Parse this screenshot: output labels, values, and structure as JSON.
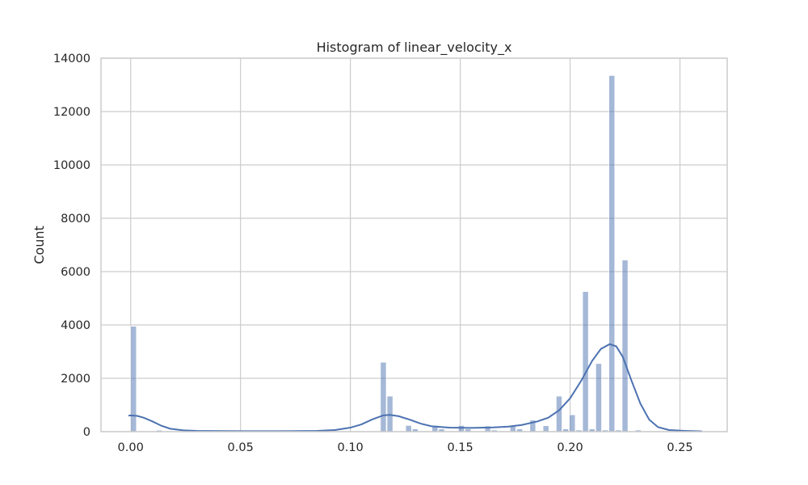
{
  "chart_data": {
    "type": "bar",
    "title": "Histogram of linear_velocity_x",
    "xlabel": "",
    "ylabel": "Count",
    "xlim": [
      -0.0135,
      0.2715
    ],
    "ylim": [
      0,
      14000
    ],
    "x_ticks": [
      0.0,
      0.05,
      0.1,
      0.15,
      0.2,
      0.25
    ],
    "x_tick_labels": [
      "0.00",
      "0.05",
      "0.10",
      "0.15",
      "0.20",
      "0.25"
    ],
    "y_ticks": [
      0,
      2000,
      4000,
      6000,
      8000,
      10000,
      12000,
      14000
    ],
    "y_tick_labels": [
      "0",
      "2000",
      "4000",
      "6000",
      "8000",
      "10000",
      "12000",
      "14000"
    ],
    "grid": true,
    "bar_width": 0.0026,
    "bar_color": "#4c72b0",
    "bar_opacity": 0.5,
    "kde_color": "#4c72b0",
    "bins": [
      {
        "x": 0.0013,
        "count": 3950
      },
      {
        "x": 0.013,
        "count": 50
      },
      {
        "x": 0.115,
        "count": 2600
      },
      {
        "x": 0.118,
        "count": 1330
      },
      {
        "x": 0.1265,
        "count": 230
      },
      {
        "x": 0.1295,
        "count": 100
      },
      {
        "x": 0.1385,
        "count": 230
      },
      {
        "x": 0.1415,
        "count": 100
      },
      {
        "x": 0.1505,
        "count": 230
      },
      {
        "x": 0.1535,
        "count": 100
      },
      {
        "x": 0.1625,
        "count": 210
      },
      {
        "x": 0.1655,
        "count": 60
      },
      {
        "x": 0.174,
        "count": 230
      },
      {
        "x": 0.177,
        "count": 100
      },
      {
        "x": 0.183,
        "count": 430
      },
      {
        "x": 0.189,
        "count": 220
      },
      {
        "x": 0.195,
        "count": 1330
      },
      {
        "x": 0.198,
        "count": 100
      },
      {
        "x": 0.201,
        "count": 630
      },
      {
        "x": 0.204,
        "count": 60
      },
      {
        "x": 0.207,
        "count": 5250
      },
      {
        "x": 0.21,
        "count": 100
      },
      {
        "x": 0.213,
        "count": 2550
      },
      {
        "x": 0.216,
        "count": 60
      },
      {
        "x": 0.219,
        "count": 13350
      },
      {
        "x": 0.222,
        "count": 60
      },
      {
        "x": 0.225,
        "count": 6430
      },
      {
        "x": 0.231,
        "count": 60
      }
    ],
    "kde": [
      [
        -0.001,
        600
      ],
      [
        0.0,
        610
      ],
      [
        0.003,
        590
      ],
      [
        0.006,
        520
      ],
      [
        0.01,
        380
      ],
      [
        0.014,
        220
      ],
      [
        0.018,
        110
      ],
      [
        0.024,
        50
      ],
      [
        0.03,
        30
      ],
      [
        0.05,
        20
      ],
      [
        0.07,
        20
      ],
      [
        0.085,
        30
      ],
      [
        0.093,
        60
      ],
      [
        0.1,
        150
      ],
      [
        0.105,
        270
      ],
      [
        0.11,
        460
      ],
      [
        0.115,
        610
      ],
      [
        0.118,
        630
      ],
      [
        0.122,
        580
      ],
      [
        0.127,
        450
      ],
      [
        0.132,
        300
      ],
      [
        0.137,
        200
      ],
      [
        0.145,
        150
      ],
      [
        0.155,
        140
      ],
      [
        0.165,
        160
      ],
      [
        0.172,
        190
      ],
      [
        0.178,
        250
      ],
      [
        0.185,
        380
      ],
      [
        0.19,
        520
      ],
      [
        0.195,
        800
      ],
      [
        0.2,
        1250
      ],
      [
        0.205,
        1900
      ],
      [
        0.21,
        2650
      ],
      [
        0.214,
        3100
      ],
      [
        0.218,
        3280
      ],
      [
        0.221,
        3200
      ],
      [
        0.224,
        2800
      ],
      [
        0.228,
        1900
      ],
      [
        0.232,
        1050
      ],
      [
        0.236,
        450
      ],
      [
        0.24,
        170
      ],
      [
        0.245,
        60
      ],
      [
        0.252,
        30
      ],
      [
        0.26,
        10
      ]
    ]
  }
}
